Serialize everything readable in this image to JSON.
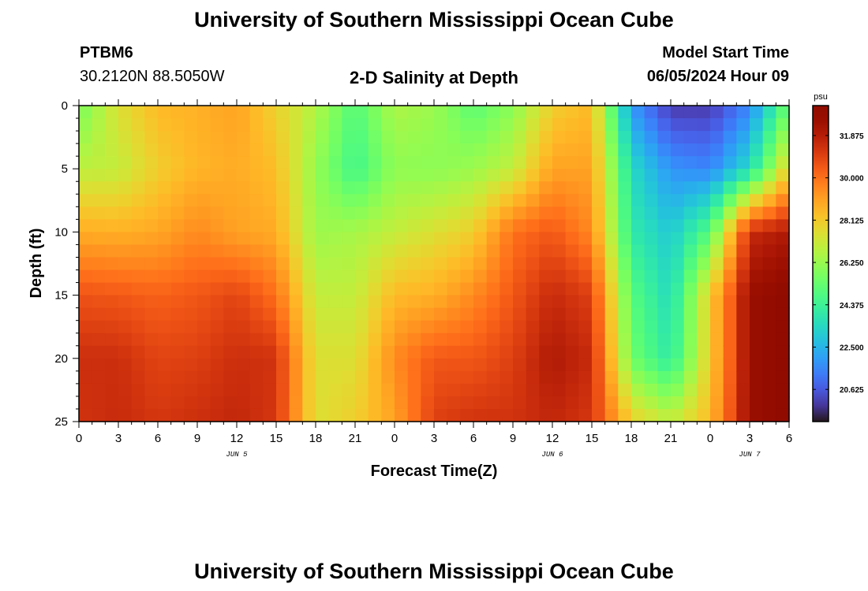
{
  "page": {
    "title_top": "University of Southern Mississippi Ocean Cube",
    "title_bottom": "University of Southern Mississippi Ocean Cube",
    "station_id": "PTBM6",
    "station_coords": "30.2120N  88.5050W",
    "chart_title": "2-D Salinity at Depth",
    "model_label": "Model Start Time",
    "model_time": "06/05/2024 Hour 09"
  },
  "chart_data": {
    "type": "heatmap",
    "title": "2-D Salinity at Depth",
    "xlabel": "Forecast Time(Z)",
    "ylabel": "Depth (ft)",
    "x_tick_labels": [
      "0",
      "3",
      "6",
      "9",
      "12",
      "15",
      "18",
      "21",
      "0",
      "3",
      "6",
      "9",
      "12",
      "15",
      "18",
      "21",
      "0",
      "3",
      "6"
    ],
    "x_ticks_hours": [
      0,
      3,
      6,
      9,
      12,
      15,
      18,
      21,
      24,
      27,
      30,
      33,
      36,
      39,
      42,
      45,
      48,
      51,
      54
    ],
    "xlim": [
      0,
      54
    ],
    "date_labels": [
      {
        "label": "JUN 5",
        "hour": 12
      },
      {
        "label": "JUN 6",
        "hour": 36
      },
      {
        "label": "JUN 7",
        "hour": 51
      }
    ],
    "y_tick_labels": [
      "0",
      "5",
      "10",
      "15",
      "20",
      "25"
    ],
    "y_ticks": [
      0,
      5,
      10,
      15,
      20,
      25
    ],
    "ylim": [
      0,
      25
    ],
    "y_inverted": true,
    "colorbar": {
      "unit": "psu",
      "range": [
        19.2,
        33.2
      ],
      "tick_labels": [
        "31.875",
        "30.000",
        "28.125",
        "26.250",
        "24.375",
        "22.500",
        "20.625"
      ],
      "ticks": [
        31.875,
        30.0,
        28.125,
        26.25,
        24.375,
        22.5,
        20.625
      ],
      "colormap": "turbo"
    },
    "grid_x_hours": [
      0,
      3,
      6,
      9,
      12,
      15,
      18,
      21,
      24,
      27,
      30,
      33,
      36,
      39,
      42,
      45,
      48,
      51,
      54
    ],
    "grid_depths_ft": [
      0,
      5,
      10,
      15,
      20,
      25
    ],
    "salinity_psu": [
      [
        25.6,
        27.5,
        28.5,
        28.7,
        29.0,
        27.9,
        26.7,
        24.9,
        26.6,
        26.3,
        25.1,
        26.0,
        28.0,
        28.5,
        21.9,
        20.0,
        20.0,
        21.5,
        25.5
      ],
      [
        26.9,
        27.0,
        28.0,
        28.6,
        28.8,
        28.4,
        26.2,
        24.5,
        26.1,
        26.0,
        26.3,
        27.0,
        29.0,
        29.0,
        23.5,
        21.8,
        21.5,
        23.5,
        28.0
      ],
      [
        28.8,
        28.7,
        28.9,
        29.5,
        29.0,
        28.8,
        26.3,
        26.5,
        27.0,
        27.5,
        28.0,
        30.0,
        30.5,
        29.5,
        24.0,
        23.0,
        25.0,
        31.5,
        32.0
      ],
      [
        30.6,
        30.5,
        30.3,
        30.5,
        30.9,
        30.0,
        27.0,
        27.0,
        28.5,
        28.7,
        29.5,
        30.5,
        31.5,
        31.0,
        25.0,
        23.5,
        28.0,
        32.5,
        33.0
      ],
      [
        31.4,
        31.4,
        30.9,
        31.0,
        31.4,
        31.3,
        27.5,
        27.5,
        29.5,
        30.5,
        30.5,
        31.0,
        32.0,
        31.5,
        25.5,
        24.0,
        28.0,
        32.5,
        33.0
      ],
      [
        31.3,
        31.5,
        31.2,
        31.4,
        31.6,
        31.2,
        27.5,
        28.0,
        29.0,
        31.0,
        31.3,
        31.3,
        31.6,
        31.2,
        28.0,
        27.0,
        28.5,
        32.5,
        33.0
      ]
    ]
  }
}
